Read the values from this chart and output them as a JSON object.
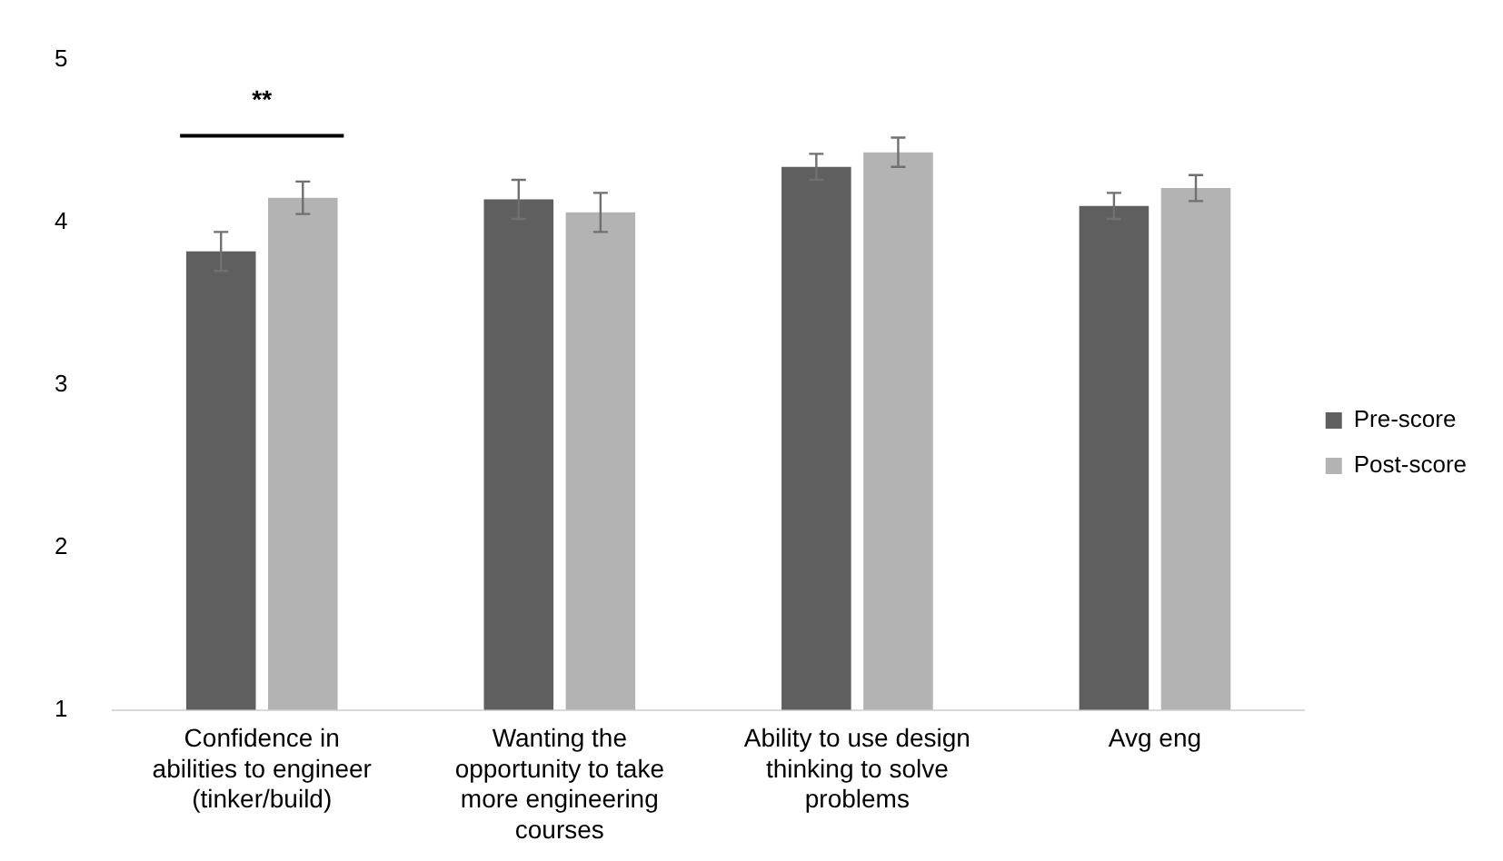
{
  "chart_data": {
    "type": "bar",
    "categories": [
      "Confidence in abilities to engineer (tinker/build)",
      "Wanting the opportunity to take more engineering courses",
      "Ability to use design thinking to solve problems",
      "Avg eng"
    ],
    "series": [
      {
        "name": "Pre-score",
        "color": "#5f5f5f",
        "values": [
          3.82,
          4.14,
          4.34,
          4.1
        ],
        "errors": [
          0.12,
          0.12,
          0.08,
          0.08
        ]
      },
      {
        "name": "Post-score",
        "color": "#b3b3b3",
        "values": [
          4.15,
          4.06,
          4.43,
          4.21
        ],
        "errors": [
          0.1,
          0.12,
          0.09,
          0.08
        ]
      }
    ],
    "ylim": [
      1,
      5
    ],
    "yticks": [
      1,
      2,
      3,
      4,
      5
    ],
    "grid": false,
    "legend": "right",
    "annotations": [
      "**"
    ]
  }
}
